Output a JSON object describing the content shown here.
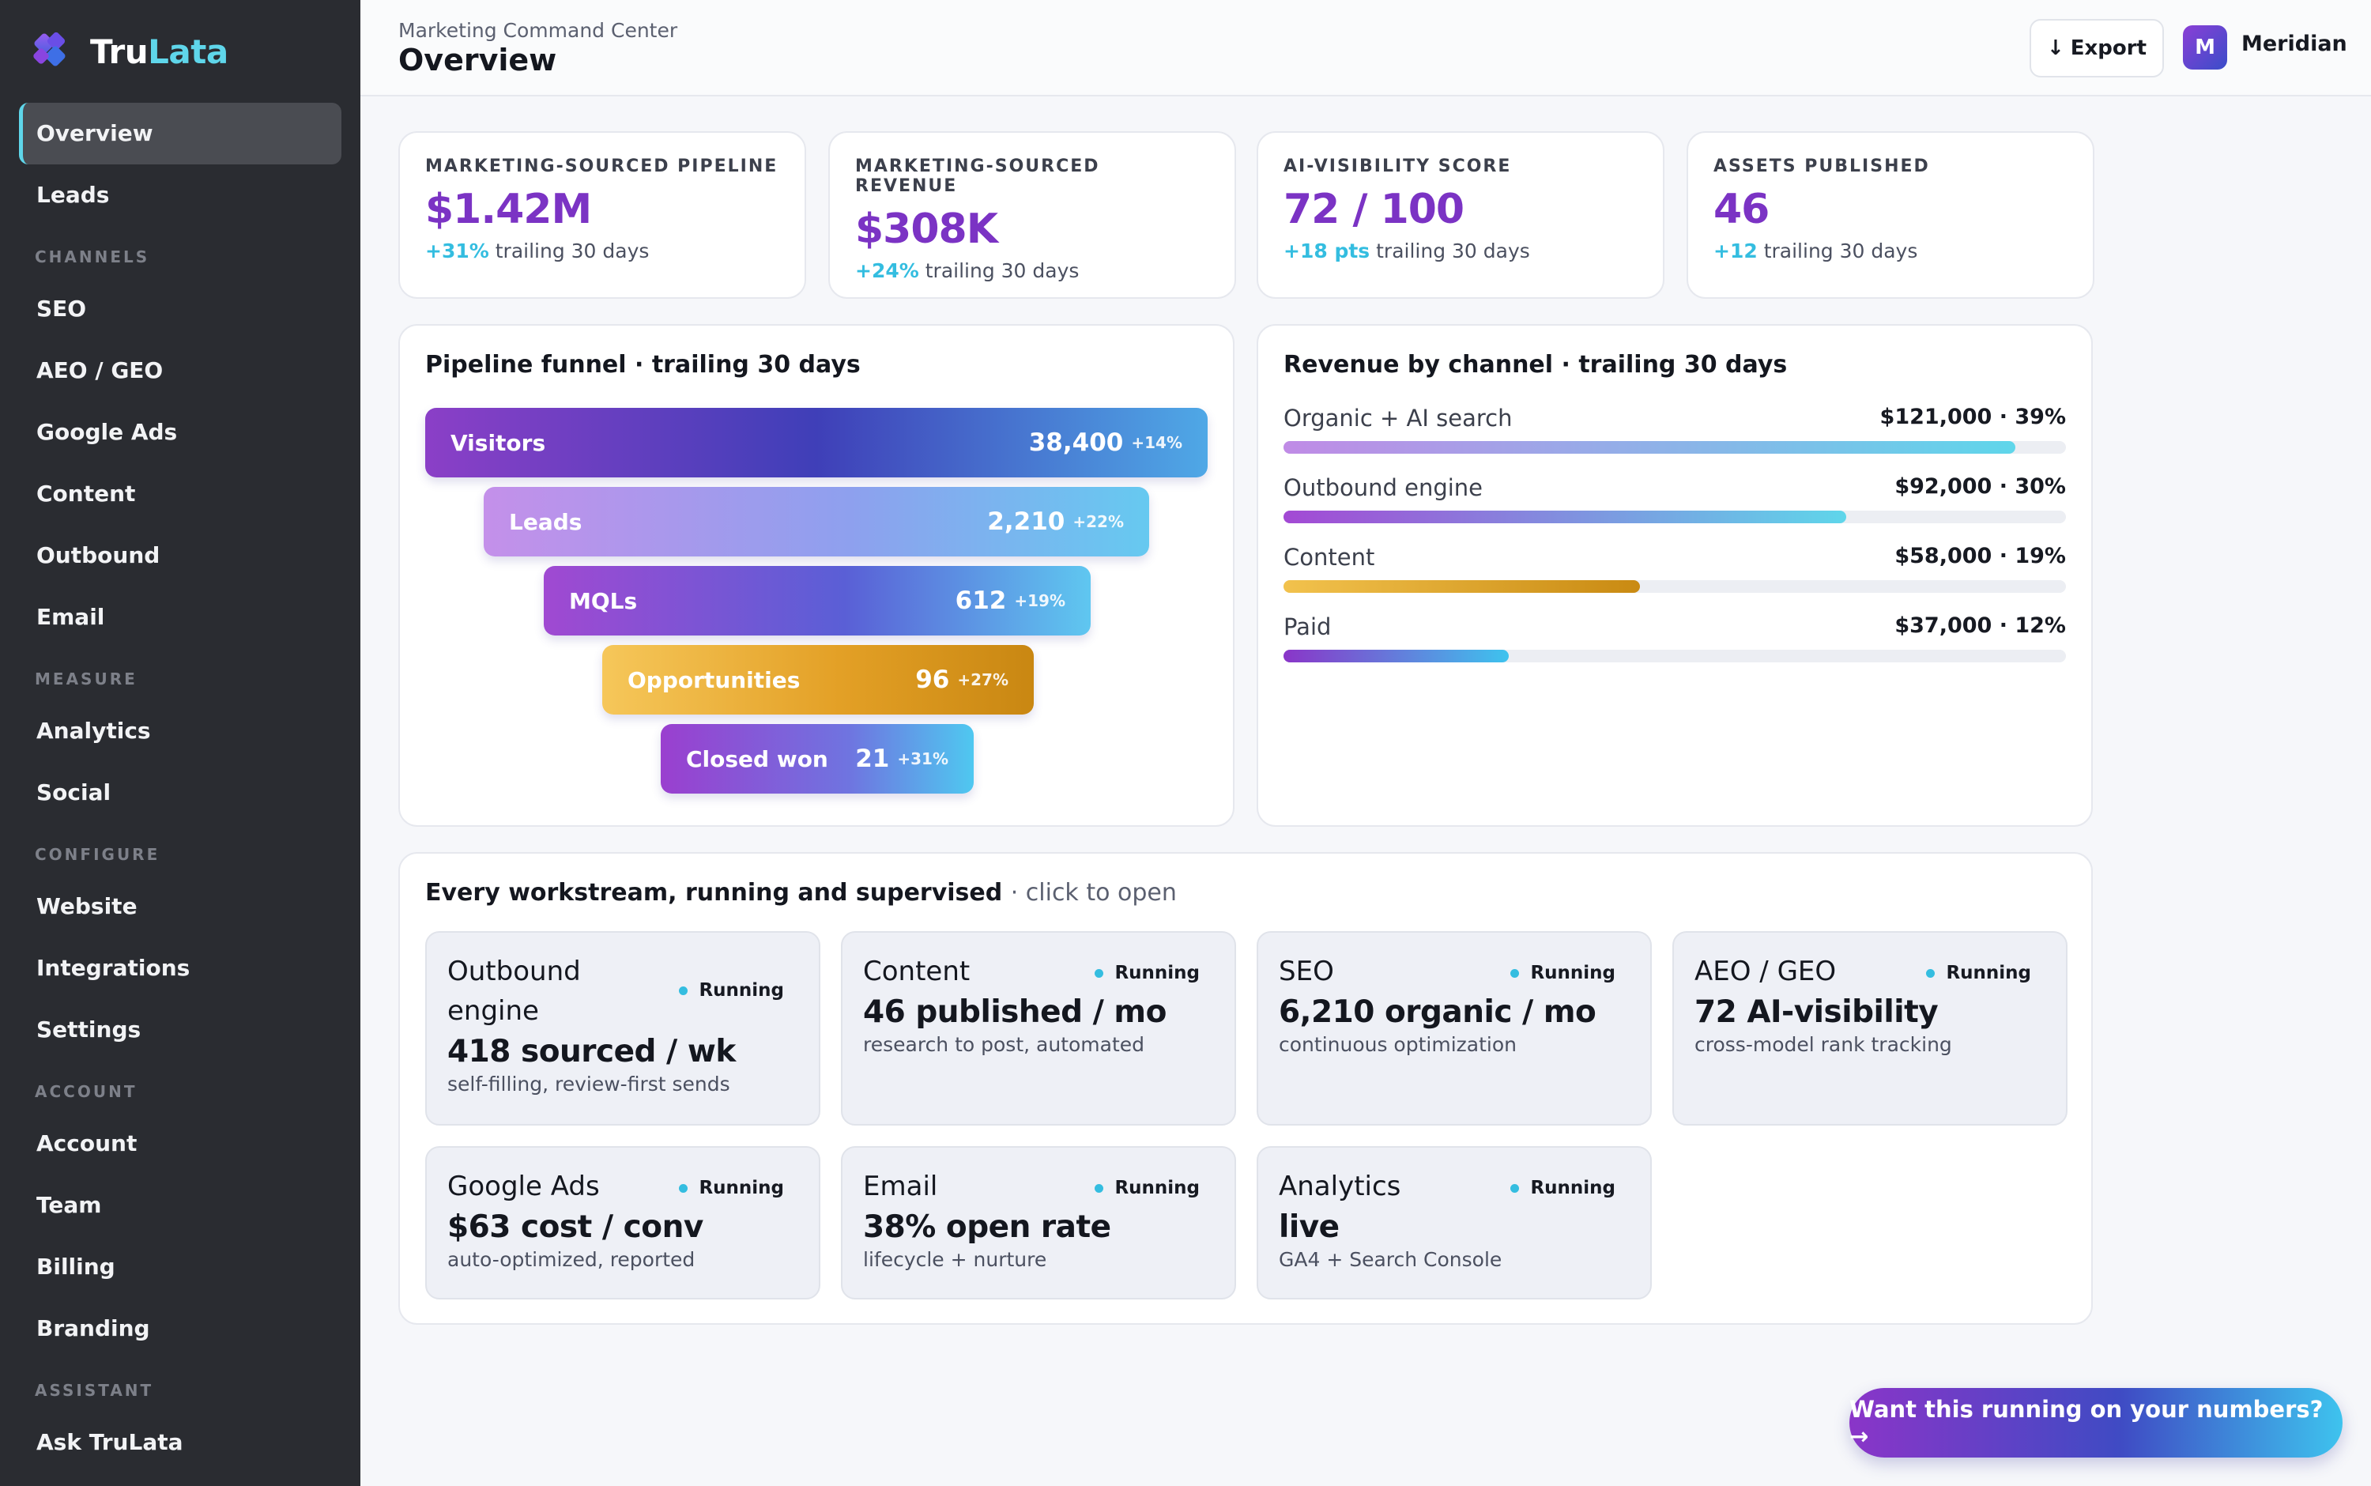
{
  "brand": {
    "name_a": "Tru",
    "name_b": "Lata"
  },
  "sidebar": {
    "items": [
      {
        "label": "Overview",
        "active": true
      },
      {
        "label": "Leads"
      },
      {
        "section": "CHANNELS"
      },
      {
        "label": "SEO"
      },
      {
        "label": "AEO / GEO"
      },
      {
        "label": "Google Ads"
      },
      {
        "label": "Content"
      },
      {
        "label": "Outbound"
      },
      {
        "label": "Email"
      },
      {
        "section": "MEASURE"
      },
      {
        "label": "Analytics"
      },
      {
        "label": "Social"
      },
      {
        "section": "CONFIGURE"
      },
      {
        "label": "Website"
      },
      {
        "label": "Integrations"
      },
      {
        "label": "Settings"
      },
      {
        "section": "ACCOUNT"
      },
      {
        "label": "Account"
      },
      {
        "label": "Team"
      },
      {
        "label": "Billing"
      },
      {
        "label": "Branding"
      },
      {
        "section": "ASSISTANT"
      },
      {
        "label": "Ask TruLata"
      }
    ]
  },
  "header": {
    "breadcrumb": "Marketing Command Center",
    "title": "Overview",
    "export_label": "Export",
    "avatar_initial": "M",
    "account_name": "Meridian"
  },
  "kpis": [
    {
      "label": "MARKETING-SOURCED PIPELINE",
      "value": "$1.42M",
      "delta": "+31%",
      "period": "trailing 30 days"
    },
    {
      "label": "MARKETING-SOURCED REVENUE",
      "value": "$308K",
      "delta": "+24%",
      "period": "trailing 30 days"
    },
    {
      "label": "AI-VISIBILITY SCORE",
      "value": "72 / 100",
      "delta": "+18 pts",
      "period": "trailing 30 days"
    },
    {
      "label": "ASSETS PUBLISHED",
      "value": "46",
      "delta": "+12",
      "period": "trailing 30 days"
    }
  ],
  "funnel": {
    "title": "Pipeline funnel · trailing 30 days",
    "stages": [
      {
        "label": "Visitors",
        "value": "38,400",
        "delta": "+14%"
      },
      {
        "label": "Leads",
        "value": "2,210",
        "delta": "+22%"
      },
      {
        "label": "MQLs",
        "value": "612",
        "delta": "+19%"
      },
      {
        "label": "Opportunities",
        "value": "96",
        "delta": "+27%"
      },
      {
        "label": "Closed won",
        "value": "21",
        "delta": "+31%"
      }
    ]
  },
  "revenue": {
    "title": "Revenue by channel · trailing 30 days",
    "channels": [
      {
        "name": "Organic + AI search",
        "amount": "$121,000 · 39%",
        "share": 0.935,
        "color_a": "#c08be6",
        "color_b": "#5fd6ea"
      },
      {
        "name": "Outbound engine",
        "amount": "$92,000 · 30%",
        "share": 0.719,
        "color_a": "#a349d4",
        "color_b": "#5fd6ea"
      },
      {
        "name": "Content",
        "amount": "$58,000 · 19%",
        "share": 0.456,
        "color_a": "#f2c24d",
        "color_b": "#c98a12"
      },
      {
        "name": "Paid",
        "amount": "$37,000 · 12%",
        "share": 0.288,
        "color_a": "#8a35c8",
        "color_b": "#3ec3ee"
      }
    ]
  },
  "workstreams": {
    "title": "Every workstream, running and supervised",
    "hint": "· click to open",
    "items": [
      {
        "name": "Outbound engine",
        "status": "Running",
        "metric": "418 sourced / wk",
        "sub": "self-filling, review-first sends"
      },
      {
        "name": "Content",
        "status": "Running",
        "metric": "46 published / mo",
        "sub": "research to post, automated"
      },
      {
        "name": "SEO",
        "status": "Running",
        "metric": "6,210 organic / mo",
        "sub": "continuous optimization"
      },
      {
        "name": "AEO / GEO",
        "status": "Running",
        "metric": "72 AI-visibility",
        "sub": "cross-model rank tracking"
      },
      {
        "name": "Google Ads",
        "status": "Running",
        "metric": "$63 cost / conv",
        "sub": "auto-optimized, reported"
      },
      {
        "name": "Email",
        "status": "Running",
        "metric": "38% open rate",
        "sub": "lifecycle + nurture"
      },
      {
        "name": "Analytics",
        "status": "Running",
        "metric": "live",
        "sub": "GA4 + Search Console"
      }
    ]
  },
  "cta": {
    "label": "Want this running on your numbers? →"
  },
  "colors": {
    "accent": "#7b33c4",
    "cyan": "#34bde0",
    "sidebar": "#2a2c31"
  }
}
